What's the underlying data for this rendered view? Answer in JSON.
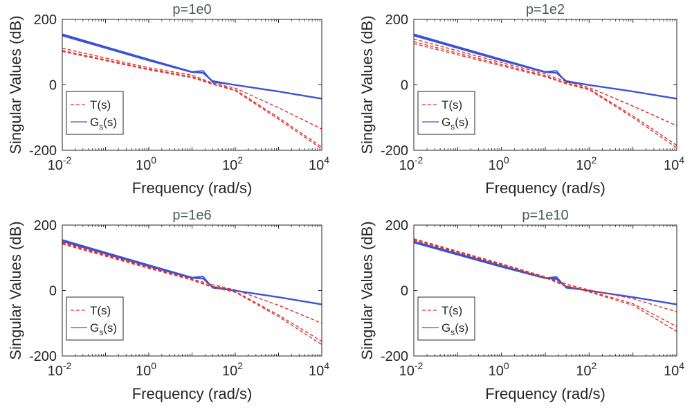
{
  "figure": {
    "shared": {
      "xlabel": "Frequency (rad/s)",
      "ylabel": "Singular Values (dB)",
      "legend_T": "T(s)",
      "legend_G_main": "G",
      "legend_G_sub": "s",
      "legend_G_tail": "(s)"
    }
  },
  "chart_data": [
    {
      "type": "line",
      "title": "p=1e0",
      "xscale": "log",
      "xlim": [
        0.01,
        10000
      ],
      "ylim": [
        -200,
        200
      ],
      "x_ticks": [
        {
          "base": "10",
          "exp": "-2"
        },
        {
          "base": "10",
          "exp": "0"
        },
        {
          "base": "10",
          "exp": "2"
        },
        {
          "base": "10",
          "exp": "4"
        }
      ],
      "y_ticks": [
        "200",
        "0",
        "-200"
      ],
      "xlabel": "Frequency (rad/s)",
      "ylabel": "Singular Values (dB)",
      "legend": {
        "entries": [
          "T(s)",
          "Gs(s)"
        ],
        "position": "bottom-left"
      },
      "series": [
        {
          "name": "G_s(s) σ1",
          "style": "solid",
          "color": "#3a53d6",
          "x": [
            0.01,
            1,
            10,
            18,
            30,
            100,
            1000,
            10000
          ],
          "y": [
            155,
            78,
            40,
            37,
            12,
            0,
            -20,
            -42
          ]
        },
        {
          "name": "G_s(s) σ2",
          "style": "solid",
          "color": "#3a53d6",
          "x": [
            0.01,
            1,
            10,
            18,
            30,
            100,
            1000,
            10000
          ],
          "y": [
            152,
            76,
            40,
            43,
            8,
            0,
            -20,
            -42
          ]
        },
        {
          "name": "G_s(s) σ3",
          "style": "solid",
          "color": "#3a53d6",
          "x": [
            0.01,
            1,
            10,
            18,
            30,
            100,
            1000,
            10000
          ],
          "y": [
            150,
            74,
            38,
            36,
            10,
            -1,
            -21,
            -43
          ]
        },
        {
          "name": "T(s) σ1",
          "style": "dashed",
          "color": "#e0312b",
          "x": [
            0.01,
            1,
            10,
            30,
            100,
            1000,
            10000
          ],
          "y": [
            112,
            52,
            30,
            5,
            -10,
            -70,
            -135
          ]
        },
        {
          "name": "T(s) σ2",
          "style": "dashed",
          "color": "#e0312b",
          "x": [
            0.01,
            1,
            10,
            30,
            100,
            1000,
            10000
          ],
          "y": [
            105,
            48,
            25,
            3,
            -15,
            -100,
            -190
          ]
        },
        {
          "name": "T(s) σ3",
          "style": "dashed",
          "color": "#e0312b",
          "x": [
            0.01,
            1,
            10,
            30,
            100,
            1000,
            10000
          ],
          "y": [
            102,
            46,
            22,
            2,
            -18,
            -105,
            -196
          ]
        }
      ]
    },
    {
      "type": "line",
      "title": "p=1e2",
      "xscale": "log",
      "xlim": [
        0.01,
        10000
      ],
      "ylim": [
        -200,
        200
      ],
      "x_ticks": [
        {
          "base": "10",
          "exp": "-2"
        },
        {
          "base": "10",
          "exp": "0"
        },
        {
          "base": "10",
          "exp": "2"
        },
        {
          "base": "10",
          "exp": "4"
        }
      ],
      "y_ticks": [
        "200",
        "0",
        "-200"
      ],
      "xlabel": "Frequency (rad/s)",
      "ylabel": "Singular Values (dB)",
      "legend": {
        "entries": [
          "T(s)",
          "Gs(s)"
        ],
        "position": "bottom-left"
      },
      "series": [
        {
          "name": "G_s(s) σ1",
          "style": "solid",
          "color": "#3a53d6",
          "x": [
            0.01,
            1,
            10,
            18,
            30,
            100,
            1000,
            10000
          ],
          "y": [
            155,
            78,
            40,
            37,
            12,
            0,
            -20,
            -42
          ]
        },
        {
          "name": "G_s(s) σ2",
          "style": "solid",
          "color": "#3a53d6",
          "x": [
            0.01,
            1,
            10,
            18,
            30,
            100,
            1000,
            10000
          ],
          "y": [
            152,
            76,
            40,
            43,
            8,
            0,
            -20,
            -42
          ]
        },
        {
          "name": "G_s(s) σ3",
          "style": "solid",
          "color": "#3a53d6",
          "x": [
            0.01,
            1,
            10,
            18,
            30,
            100,
            1000,
            10000
          ],
          "y": [
            150,
            74,
            38,
            36,
            10,
            -1,
            -21,
            -43
          ]
        },
        {
          "name": "T(s) σ1",
          "style": "dashed",
          "color": "#e0312b",
          "x": [
            0.01,
            1,
            10,
            30,
            100,
            1000,
            10000
          ],
          "y": [
            140,
            68,
            33,
            10,
            -8,
            -65,
            -125
          ]
        },
        {
          "name": "T(s) σ2",
          "style": "dashed",
          "color": "#e0312b",
          "x": [
            0.01,
            1,
            10,
            30,
            100,
            1000,
            10000
          ],
          "y": [
            132,
            62,
            28,
            5,
            -12,
            -95,
            -185
          ]
        },
        {
          "name": "T(s) σ3",
          "style": "dashed",
          "color": "#e0312b",
          "x": [
            0.01,
            1,
            10,
            30,
            100,
            1000,
            10000
          ],
          "y": [
            126,
            58,
            25,
            3,
            -15,
            -100,
            -193
          ]
        }
      ]
    },
    {
      "type": "line",
      "title": "p=1e6",
      "xscale": "log",
      "xlim": [
        0.01,
        10000
      ],
      "ylim": [
        -200,
        200
      ],
      "x_ticks": [
        {
          "base": "10",
          "exp": "-2"
        },
        {
          "base": "10",
          "exp": "0"
        },
        {
          "base": "10",
          "exp": "2"
        },
        {
          "base": "10",
          "exp": "4"
        }
      ],
      "y_ticks": [
        "200",
        "0",
        "-200"
      ],
      "xlabel": "Frequency (rad/s)",
      "ylabel": "Singular Values (dB)",
      "legend": {
        "entries": [
          "T(s)",
          "Gs(s)"
        ],
        "position": "bottom-left"
      },
      "series": [
        {
          "name": "G_s(s) σ1",
          "style": "solid",
          "color": "#3a53d6",
          "x": [
            0.01,
            1,
            10,
            18,
            30,
            100,
            1000,
            10000
          ],
          "y": [
            155,
            78,
            40,
            37,
            12,
            0,
            -20,
            -42
          ]
        },
        {
          "name": "G_s(s) σ2",
          "style": "solid",
          "color": "#3a53d6",
          "x": [
            0.01,
            1,
            10,
            18,
            30,
            100,
            1000,
            10000
          ],
          "y": [
            152,
            76,
            40,
            43,
            8,
            0,
            -20,
            -42
          ]
        },
        {
          "name": "G_s(s) σ3",
          "style": "solid",
          "color": "#3a53d6",
          "x": [
            0.01,
            1,
            10,
            18,
            30,
            100,
            1000,
            10000
          ],
          "y": [
            150,
            74,
            38,
            36,
            10,
            -1,
            -21,
            -43
          ]
        },
        {
          "name": "T(s) σ1",
          "style": "dashed",
          "color": "#e0312b",
          "x": [
            0.01,
            1,
            10,
            30,
            100,
            1000,
            10000
          ],
          "y": [
            148,
            72,
            35,
            18,
            2,
            -45,
            -100
          ]
        },
        {
          "name": "T(s) σ2",
          "style": "dashed",
          "color": "#e0312b",
          "x": [
            0.01,
            1,
            10,
            30,
            100,
            1000,
            10000
          ],
          "y": [
            145,
            70,
            33,
            12,
            -3,
            -75,
            -155
          ]
        },
        {
          "name": "T(s) σ3",
          "style": "dashed",
          "color": "#e0312b",
          "x": [
            0.01,
            1,
            10,
            30,
            100,
            1000,
            10000
          ],
          "y": [
            142,
            68,
            32,
            10,
            -5,
            -80,
            -165
          ]
        }
      ]
    },
    {
      "type": "line",
      "title": "p=1e10",
      "xscale": "log",
      "xlim": [
        0.01,
        10000
      ],
      "ylim": [
        -200,
        200
      ],
      "x_ticks": [
        {
          "base": "10",
          "exp": "-2"
        },
        {
          "base": "10",
          "exp": "0"
        },
        {
          "base": "10",
          "exp": "2"
        },
        {
          "base": "10",
          "exp": "4"
        }
      ],
      "y_ticks": [
        "200",
        "0",
        "-200"
      ],
      "xlabel": "Frequency (rad/s)",
      "ylabel": "Singular Values (dB)",
      "legend": {
        "entries": [
          "T(s)",
          "Gs(s)"
        ],
        "position": "bottom-left"
      },
      "series": [
        {
          "name": "G_s(s) σ1",
          "style": "solid",
          "color": "#3a53d6",
          "x": [
            0.01,
            1,
            10,
            18,
            30,
            100,
            1000,
            10000
          ],
          "y": [
            150,
            76,
            39,
            37,
            12,
            0,
            -20,
            -42
          ]
        },
        {
          "name": "G_s(s) σ2",
          "style": "solid",
          "color": "#3a53d6",
          "x": [
            0.01,
            1,
            10,
            18,
            30,
            100,
            1000,
            10000
          ],
          "y": [
            148,
            74,
            38,
            42,
            8,
            0,
            -20,
            -42
          ]
        },
        {
          "name": "G_s(s) σ3",
          "style": "solid",
          "color": "#3a53d6",
          "x": [
            0.01,
            1,
            10,
            18,
            30,
            100,
            1000,
            10000
          ],
          "y": [
            146,
            72,
            37,
            35,
            10,
            -1,
            -21,
            -43
          ]
        },
        {
          "name": "T(s) σ1",
          "style": "dashed",
          "color": "#e0312b",
          "x": [
            0.01,
            1,
            10,
            30,
            100,
            1000,
            10000
          ],
          "y": [
            158,
            82,
            42,
            20,
            2,
            -25,
            -65
          ]
        },
        {
          "name": "T(s) σ2",
          "style": "dashed",
          "color": "#e0312b",
          "x": [
            0.01,
            1,
            10,
            30,
            100,
            1000,
            10000
          ],
          "y": [
            156,
            80,
            40,
            15,
            -2,
            -40,
            -110
          ]
        },
        {
          "name": "T(s) σ3",
          "style": "dashed",
          "color": "#e0312b",
          "x": [
            0.01,
            1,
            10,
            30,
            100,
            1000,
            10000
          ],
          "y": [
            154,
            78,
            39,
            13,
            -4,
            -45,
            -125
          ]
        }
      ]
    }
  ]
}
